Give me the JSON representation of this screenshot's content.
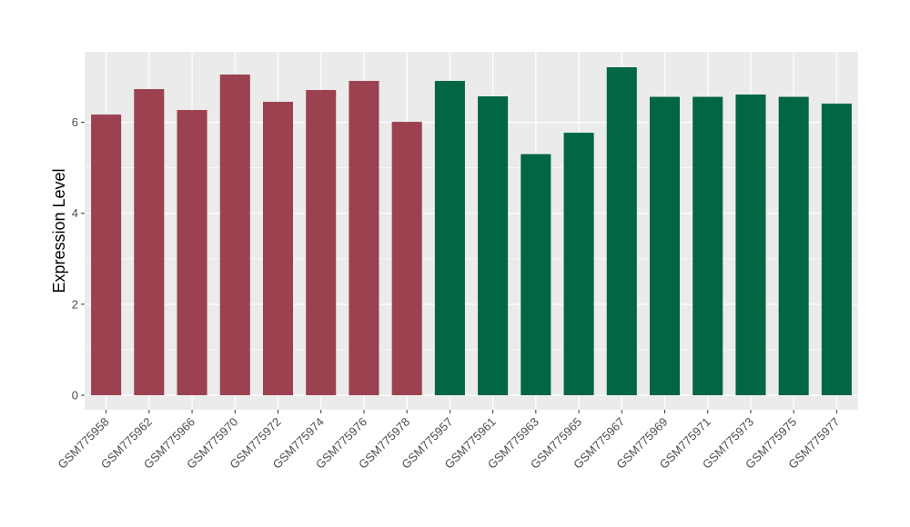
{
  "chart_data": {
    "type": "bar",
    "title": "",
    "xlabel": "",
    "ylabel": "Expression Level",
    "ylim": [
      -0.32,
      7.55
    ],
    "yticks": [
      0,
      2,
      4,
      6
    ],
    "grid": true,
    "legend": "none",
    "colors": {
      "group_a": "#9b4150",
      "group_b": "#006644",
      "panel": "#ebebeb",
      "grid": "#ffffff"
    },
    "categories": [
      "GSM775958",
      "GSM775962",
      "GSM775966",
      "GSM775970",
      "GSM775972",
      "GSM775974",
      "GSM775976",
      "GSM775978",
      "GSM775957",
      "GSM775961",
      "GSM775963",
      "GSM775965",
      "GSM775967",
      "GSM775969",
      "GSM775971",
      "GSM775973",
      "GSM775975",
      "GSM775977"
    ],
    "values": [
      6.17,
      6.73,
      6.27,
      7.05,
      6.45,
      6.71,
      6.91,
      6.01,
      6.91,
      6.57,
      5.3,
      5.77,
      7.21,
      6.56,
      6.56,
      6.61,
      6.56,
      6.41
    ],
    "groups": [
      "a",
      "a",
      "a",
      "a",
      "a",
      "a",
      "a",
      "a",
      "b",
      "b",
      "b",
      "b",
      "b",
      "b",
      "b",
      "b",
      "b",
      "b"
    ]
  }
}
